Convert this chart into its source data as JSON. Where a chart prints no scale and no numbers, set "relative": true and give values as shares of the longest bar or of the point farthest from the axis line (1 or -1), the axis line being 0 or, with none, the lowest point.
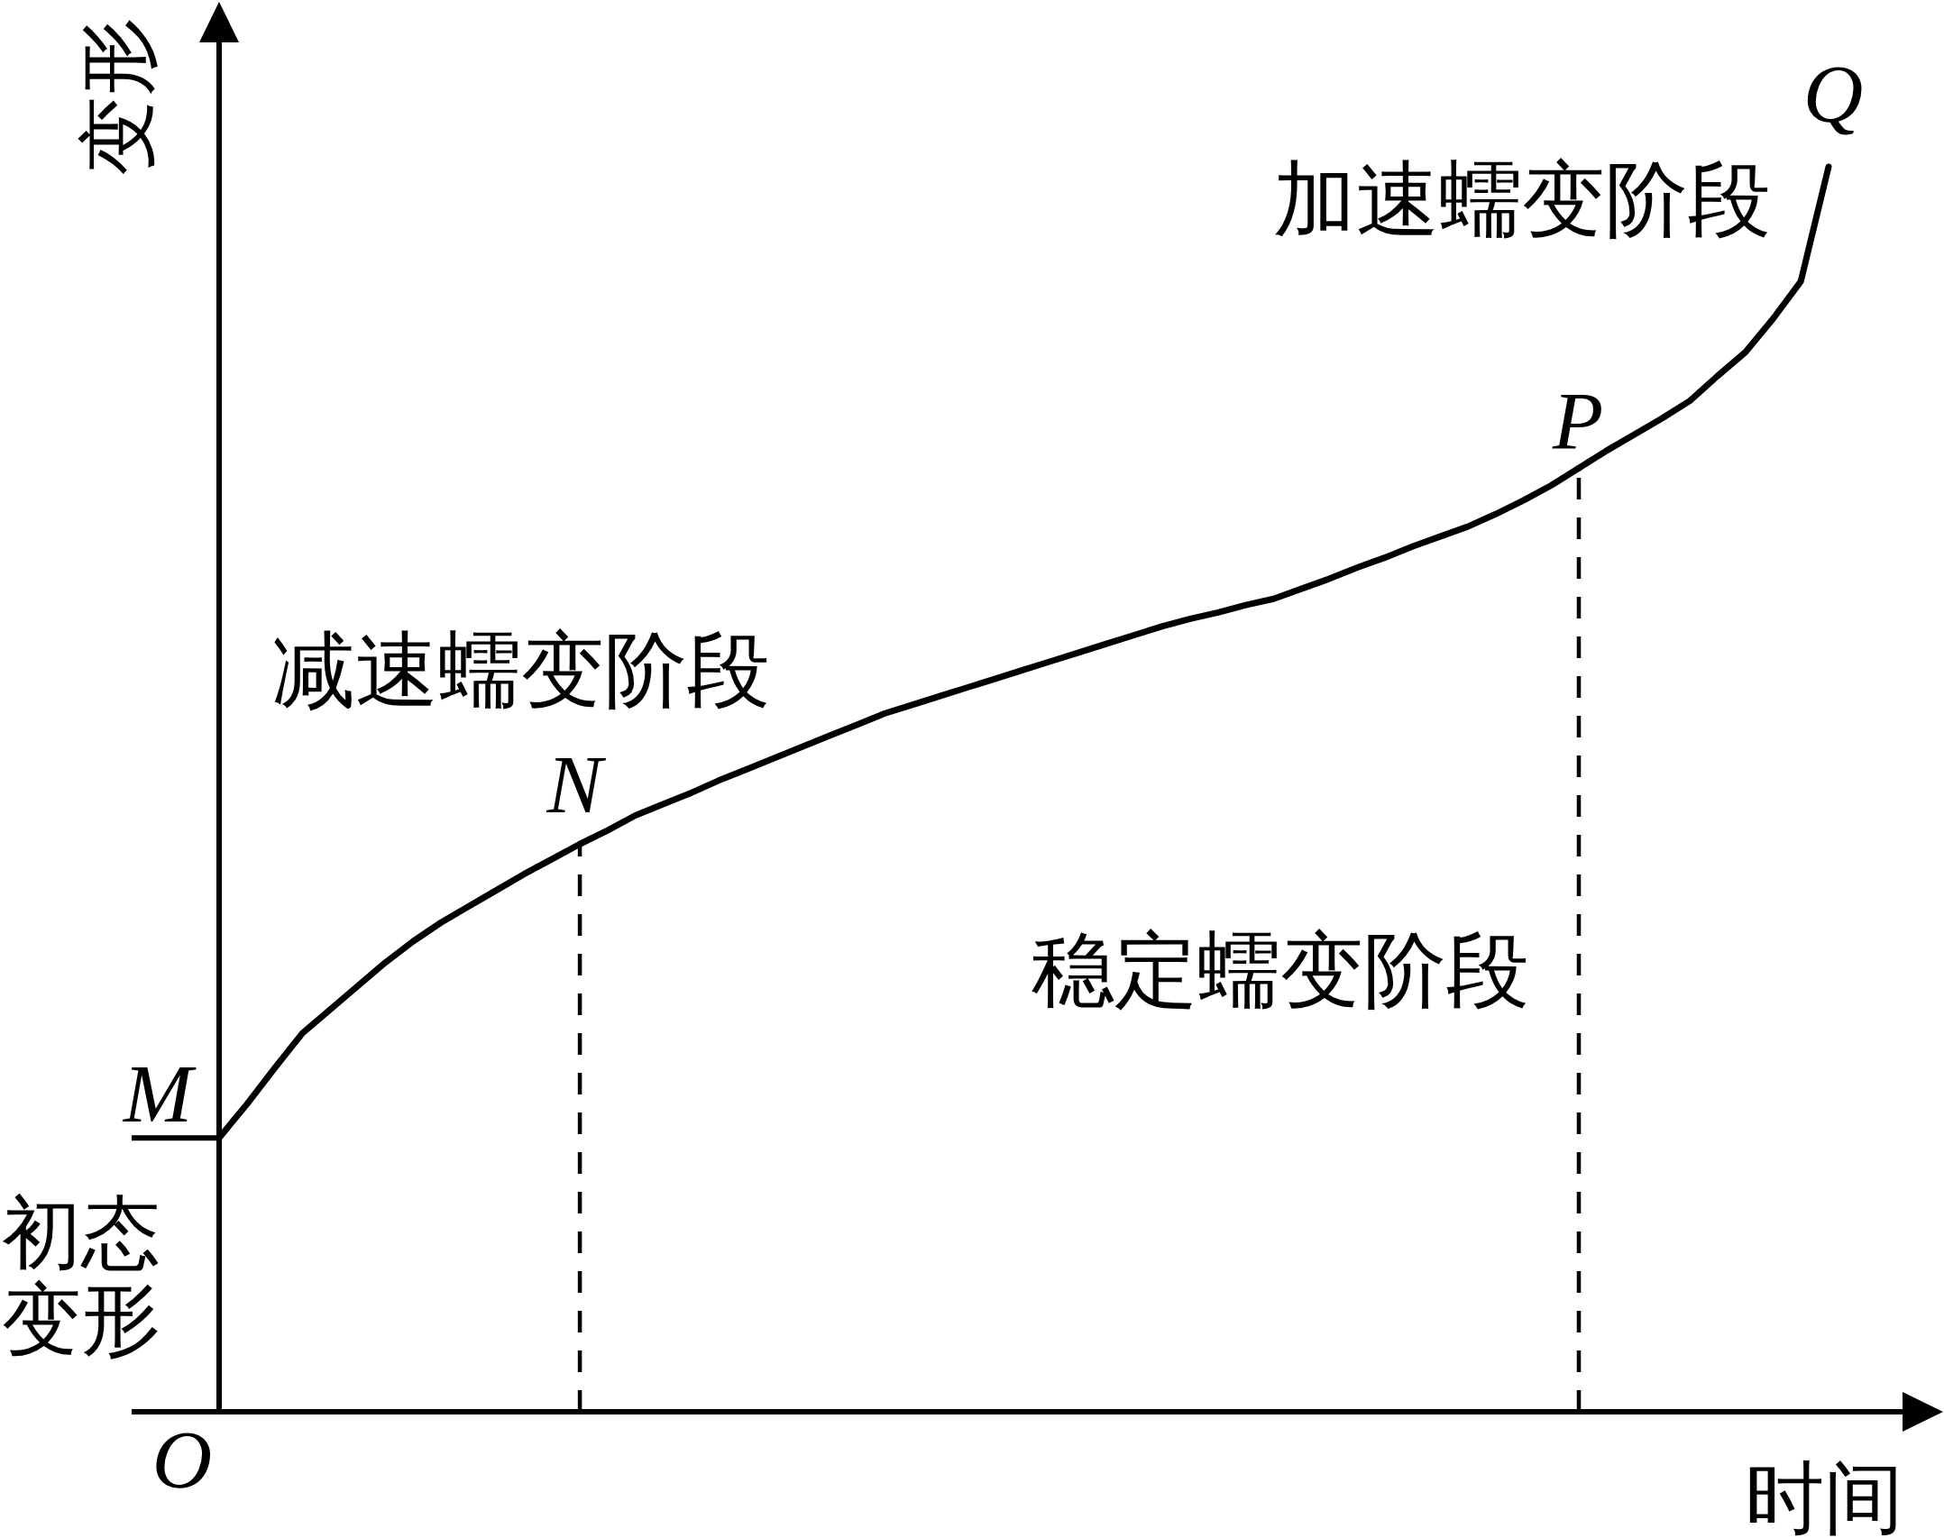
{
  "chart_data": {
    "type": "line",
    "relative": true,
    "xlabel": "时间",
    "ylabel": "变形",
    "categories": [
      null,
      null,
      null,
      null,
      null,
      null,
      null,
      null,
      null,
      null,
      null,
      null,
      null,
      null,
      null,
      null,
      null,
      null,
      null,
      null,
      null,
      null,
      null,
      null,
      null,
      null,
      null,
      null,
      null,
      null,
      null,
      null,
      null,
      null,
      null,
      null,
      null,
      null,
      null,
      null,
      null,
      null,
      null,
      null,
      null,
      null,
      null,
      null,
      null,
      null,
      null,
      null,
      null,
      null,
      null,
      null,
      null,
      null,
      null
    ],
    "series": [
      {
        "color": "#000000",
        "values": [
          0.22,
          0.247,
          0.276,
          0.304,
          0.323,
          0.342,
          0.361,
          0.378,
          0.393,
          0.406,
          0.419,
          0.432,
          0.444,
          0.456,
          null,
          null,
          null,
          null,
          null,
          null,
          null,
          null,
          null,
          null,
          null,
          null,
          null,
          null,
          null,
          null,
          null,
          null,
          null,
          null,
          null,
          null,
          null,
          null,
          null,
          null,
          null,
          null,
          null,
          null,
          null,
          null,
          null,
          null,
          null,
          null,
          null,
          null,
          null,
          null,
          null,
          null,
          null,
          null,
          null
        ]
      },
      {
        "color": "#000000",
        "values": [
          null,
          null,
          null,
          null,
          null,
          null,
          null,
          null,
          null,
          null,
          null,
          null,
          null,
          0.456,
          0.467,
          0.479,
          0.488,
          0.497,
          0.507,
          0.516,
          0.525,
          0.534,
          0.543,
          0.552,
          0.561,
          0.568,
          0.575,
          0.582,
          0.589,
          0.596,
          0.603,
          0.61,
          0.617,
          0.624,
          0.631,
          0.637,
          0.642,
          0.648,
          0.653,
          0.661,
          0.669,
          0.678,
          0.686,
          0.695,
          0.703,
          0.711,
          0.721,
          0.732,
          0.744,
          0.758,
          null,
          null,
          null,
          null,
          null,
          null,
          null,
          null,
          null
        ]
      },
      {
        "color": "#000000",
        "values": [
          null,
          null,
          null,
          null,
          null,
          null,
          null,
          null,
          null,
          null,
          null,
          null,
          null,
          null,
          null,
          null,
          null,
          null,
          null,
          null,
          null,
          null,
          null,
          null,
          null,
          null,
          null,
          null,
          null,
          null,
          null,
          null,
          null,
          null,
          null,
          null,
          null,
          null,
          null,
          null,
          null,
          null,
          null,
          null,
          null,
          null,
          null,
          null,
          null,
          0.758,
          0.772,
          0.785,
          0.798,
          0.812,
          0.832,
          0.851,
          0.878,
          0.908,
          1
        ]
      }
    ],
    "ref_lines": [
      {
        "axis": "y",
        "value": 0.22,
        "label": "初态变形"
      }
    ],
    "annotations": [
      {
        "text": "M",
        "y": 0.22
      },
      {
        "text": "N",
        "y": 0.456
      },
      {
        "text": "P",
        "y": 0.758
      },
      {
        "text": "Q",
        "y": 1
      },
      "O",
      "减速蠕变阶段",
      "稳定蠕变阶段",
      "加速蠕变阶段"
    ]
  }
}
